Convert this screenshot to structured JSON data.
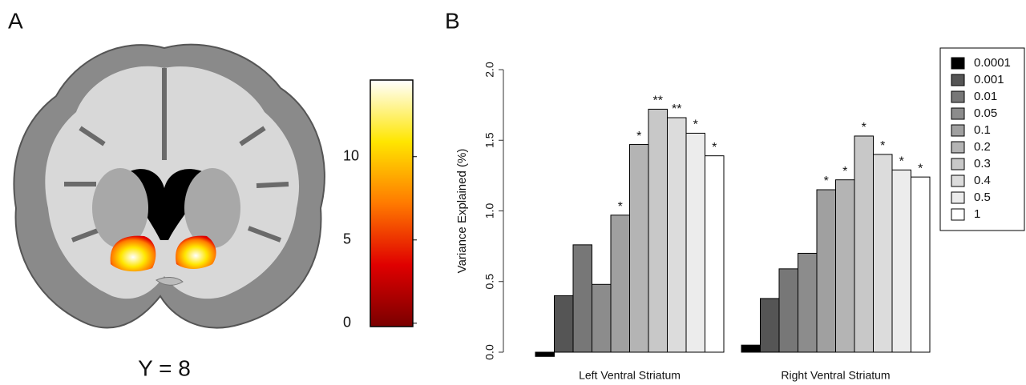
{
  "chart_data": [
    {
      "type": "colorbar",
      "panel": "A",
      "annotation": "Y = 8",
      "colors": [
        "#7a0000",
        "#e00000",
        "#ff7a00",
        "#ffe600",
        "#ffffff"
      ],
      "ylim": [
        -0.2,
        14.6
      ],
      "yticks": [
        0,
        5,
        10
      ]
    },
    {
      "type": "bar",
      "panel": "B",
      "ylabel": "Variance Explained (%)",
      "categories": [
        "Left Ventral Striatum",
        "Right Ventral Striatum"
      ],
      "ylim": [
        0,
        2
      ],
      "yticks": [
        {
          "value": 0,
          "label": "0.0"
        },
        {
          "value": 0.5,
          "label": "0.5"
        },
        {
          "value": 1,
          "label": "1.0"
        },
        {
          "value": 1.5,
          "label": "1.5"
        },
        {
          "value": 2,
          "label": "2.0"
        }
      ],
      "legend": "top-right",
      "series": [
        {
          "name": "0.0001",
          "color": "#000000",
          "values": [
            -0.03,
            0.05
          ],
          "annotations": [
            null,
            null
          ]
        },
        {
          "name": "0.001",
          "color": "#555555",
          "values": [
            0.4,
            0.38
          ],
          "annotations": [
            null,
            null
          ]
        },
        {
          "name": "0.01",
          "color": "#777777",
          "values": [
            0.76,
            0.59
          ],
          "annotations": [
            null,
            null
          ]
        },
        {
          "name": "0.05",
          "color": "#8c8c8c",
          "values": [
            0.48,
            0.7
          ],
          "annotations": [
            null,
            null
          ]
        },
        {
          "name": "0.1",
          "color": "#a0a0a0",
          "values": [
            0.97,
            1.15
          ],
          "annotations": [
            "*",
            "*"
          ]
        },
        {
          "name": "0.2",
          "color": "#b4b4b4",
          "values": [
            1.47,
            1.22
          ],
          "annotations": [
            "*",
            "*"
          ]
        },
        {
          "name": "0.3",
          "color": "#c8c8c8",
          "values": [
            1.72,
            1.53
          ],
          "annotations": [
            "**",
            "*"
          ]
        },
        {
          "name": "0.4",
          "color": "#dcdcdc",
          "values": [
            1.66,
            1.4
          ],
          "annotations": [
            "**",
            "*"
          ]
        },
        {
          "name": "0.5",
          "color": "#ececec",
          "values": [
            1.55,
            1.29
          ],
          "annotations": [
            "*",
            "*"
          ]
        },
        {
          "name": "1",
          "color": "#ffffff",
          "values": [
            1.39,
            1.24
          ],
          "annotations": [
            "*",
            "*"
          ]
        }
      ]
    }
  ]
}
